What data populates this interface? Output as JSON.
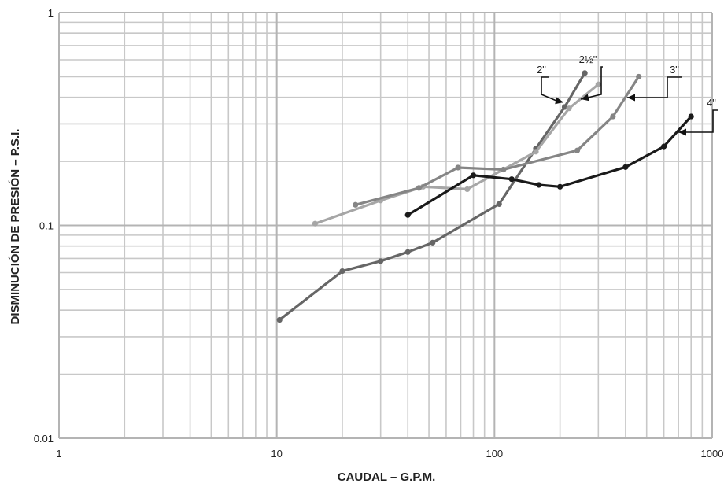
{
  "chart_data": {
    "type": "line",
    "xlabel": "CAUDAL – G.P.M.",
    "ylabel": "DISMINUCIÓN DE PRESIÓN – P.S.I.",
    "xscale": "log",
    "yscale": "log",
    "xlim": [
      1,
      1000
    ],
    "ylim": [
      0.01,
      1
    ],
    "grid": true,
    "x_tick_labels": [
      "1",
      "10",
      "100",
      "1000"
    ],
    "y_tick_labels": [
      "0.01",
      "0.1",
      "1"
    ],
    "colors": [
      "#666666",
      "#a6a6a6",
      "#858585",
      "#1a1a1a"
    ],
    "series": [
      {
        "name": "2\"",
        "x": [
          10.3,
          20,
          30,
          40,
          52,
          105,
          155,
          210,
          260
        ],
        "y": [
          0.036,
          0.061,
          0.068,
          0.075,
          0.083,
          0.126,
          0.23,
          0.36,
          0.52
        ]
      },
      {
        "name": "2½\"",
        "x": [
          15,
          30,
          47,
          75,
          155,
          220,
          300
        ],
        "y": [
          0.102,
          0.131,
          0.152,
          0.148,
          0.222,
          0.355,
          0.46
        ]
      },
      {
        "name": "3\"",
        "x": [
          23,
          45,
          68,
          110,
          240,
          350,
          460
        ],
        "y": [
          0.125,
          0.15,
          0.187,
          0.183,
          0.225,
          0.325,
          0.5
        ]
      },
      {
        "name": "4\"",
        "x": [
          40,
          80,
          120,
          160,
          200,
          400,
          600,
          800
        ],
        "y": [
          0.112,
          0.172,
          0.165,
          0.155,
          0.152,
          0.188,
          0.235,
          0.325
        ]
      }
    ]
  }
}
